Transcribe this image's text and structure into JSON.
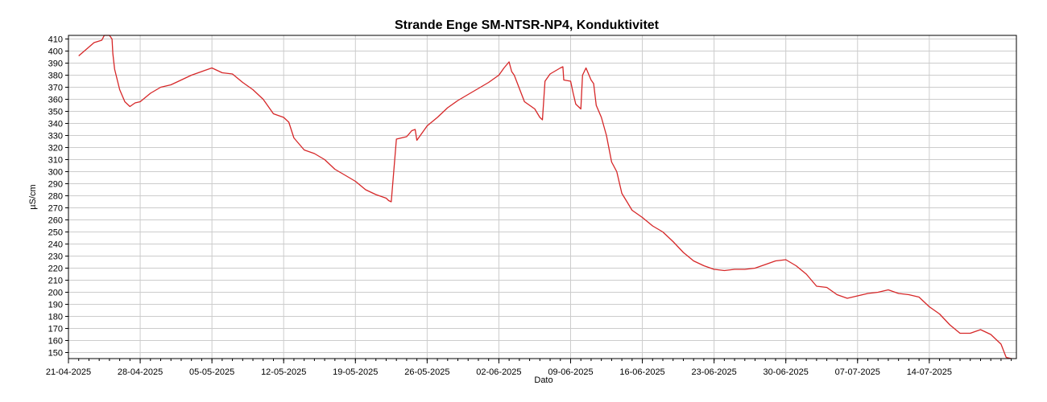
{
  "chart_data": {
    "type": "line",
    "title": "Strande Enge SM-NTSR-NP4, Konduktivitet",
    "xlabel": "Dato",
    "ylabel": "µS/cm",
    "ylim": [
      145,
      413
    ],
    "yticks": [
      150,
      160,
      170,
      180,
      190,
      200,
      210,
      220,
      230,
      240,
      250,
      260,
      270,
      280,
      290,
      300,
      310,
      320,
      330,
      340,
      350,
      360,
      370,
      380,
      390,
      400,
      410
    ],
    "xlim": [
      "2025-04-21T00:00",
      "2025-07-22T12:00"
    ],
    "xticks": [
      "21-04-2025",
      "28-04-2025",
      "05-05-2025",
      "12-05-2025",
      "19-05-2025",
      "26-05-2025",
      "02-06-2025",
      "09-06-2025",
      "16-06-2025",
      "23-06-2025",
      "30-06-2025",
      "07-07-2025",
      "14-07-2025"
    ],
    "grid": true,
    "colors": {
      "series": "#d62728",
      "grid": "#cccccc",
      "axis": "#000000"
    },
    "series": [
      {
        "x": [
          "2025-04-22T00:00",
          "2025-04-23T12:00",
          "2025-04-24T06:00",
          "2025-04-24T12:00",
          "2025-04-25T00:00",
          "2025-04-25T06:00",
          "2025-04-25T08:00",
          "2025-04-25T12:00",
          "2025-04-26T00:00",
          "2025-04-26T12:00",
          "2025-04-27T00:00",
          "2025-04-27T12:00",
          "2025-04-28T00:00",
          "2025-04-29T00:00",
          "2025-04-30T00:00",
          "2025-05-01T00:00",
          "2025-05-02T00:00",
          "2025-05-03T00:00",
          "2025-05-04T00:00",
          "2025-05-05T00:00",
          "2025-05-06T00:00",
          "2025-05-07T00:00",
          "2025-05-08T00:00",
          "2025-05-09T00:00",
          "2025-05-10T00:00",
          "2025-05-11T00:00",
          "2025-05-12T00:00",
          "2025-05-12T12:00",
          "2025-05-13T00:00",
          "2025-05-14T00:00",
          "2025-05-15T00:00",
          "2025-05-16T00:00",
          "2025-05-17T00:00",
          "2025-05-18T00:00",
          "2025-05-19T00:00",
          "2025-05-20T00:00",
          "2025-05-21T00:00",
          "2025-05-22T00:00",
          "2025-05-22T06:00",
          "2025-05-22T12:00",
          "2025-05-23T00:00",
          "2025-05-24T00:00",
          "2025-05-24T12:00",
          "2025-05-24T20:00",
          "2025-05-25T00:00",
          "2025-05-26T00:00",
          "2025-05-27T00:00",
          "2025-05-28T00:00",
          "2025-05-29T00:00",
          "2025-05-30T00:00",
          "2025-05-31T00:00",
          "2025-06-01T00:00",
          "2025-06-02T00:00",
          "2025-06-02T12:00",
          "2025-06-03T00:00",
          "2025-06-03T06:00",
          "2025-06-03T12:00",
          "2025-06-04T12:00",
          "2025-06-05T12:00",
          "2025-06-06T00:00",
          "2025-06-06T06:00",
          "2025-06-06T12:00",
          "2025-06-07T00:00",
          "2025-06-08T00:00",
          "2025-06-08T06:00",
          "2025-06-08T08:00",
          "2025-06-09T00:00",
          "2025-06-09T06:00",
          "2025-06-09T12:00",
          "2025-06-10T00:00",
          "2025-06-10T04:00",
          "2025-06-10T12:00",
          "2025-06-11T00:00",
          "2025-06-11T06:00",
          "2025-06-11T12:00",
          "2025-06-12T00:00",
          "2025-06-12T12:00",
          "2025-06-13T00:00",
          "2025-06-13T12:00",
          "2025-06-14T00:00",
          "2025-06-14T12:00",
          "2025-06-15T00:00",
          "2025-06-16T00:00",
          "2025-06-17T00:00",
          "2025-06-18T00:00",
          "2025-06-19T00:00",
          "2025-06-20T00:00",
          "2025-06-21T00:00",
          "2025-06-22T00:00",
          "2025-06-23T00:00",
          "2025-06-24T00:00",
          "2025-06-25T00:00",
          "2025-06-26T00:00",
          "2025-06-27T00:00",
          "2025-06-28T00:00",
          "2025-06-29T00:00",
          "2025-06-30T00:00",
          "2025-07-01T00:00",
          "2025-07-02T00:00",
          "2025-07-03T00:00",
          "2025-07-04T00:00",
          "2025-07-05T00:00",
          "2025-07-06T00:00",
          "2025-07-07T00:00",
          "2025-07-08T00:00",
          "2025-07-09T00:00",
          "2025-07-10T00:00",
          "2025-07-11T00:00",
          "2025-07-12T00:00",
          "2025-07-13T00:00",
          "2025-07-14T00:00",
          "2025-07-15T00:00",
          "2025-07-16T00:00",
          "2025-07-17T00:00",
          "2025-07-18T00:00",
          "2025-07-19T00:00",
          "2025-07-20T00:00",
          "2025-07-21T00:00",
          "2025-07-21T12:00",
          "2025-07-22T00:00"
        ],
        "y": [
          396,
          407,
          409,
          413,
          413,
          410,
          398,
          385,
          368,
          358,
          354,
          357,
          358,
          365,
          370,
          372,
          376,
          380,
          383,
          386,
          382,
          381,
          374,
          368,
          360,
          348,
          345,
          341,
          328,
          318,
          315,
          310,
          302,
          297,
          292,
          285,
          281,
          278,
          276,
          275,
          327,
          329,
          334,
          335,
          326,
          338,
          345,
          353,
          359,
          364,
          369,
          374,
          380,
          386,
          391,
          383,
          380,
          358,
          352,
          345,
          343,
          375,
          381,
          386,
          387,
          376,
          375,
          365,
          356,
          352,
          380,
          386,
          376,
          373,
          355,
          345,
          330,
          308,
          300,
          282,
          275,
          268,
          262,
          255,
          250,
          242,
          233,
          226,
          222,
          219,
          218,
          219,
          219,
          220,
          223,
          226,
          227,
          222,
          215,
          205,
          204,
          198,
          195,
          197,
          199,
          200,
          202,
          199,
          198,
          196,
          188,
          182,
          173,
          166,
          166,
          169,
          165,
          157,
          146,
          145
        ]
      }
    ]
  }
}
